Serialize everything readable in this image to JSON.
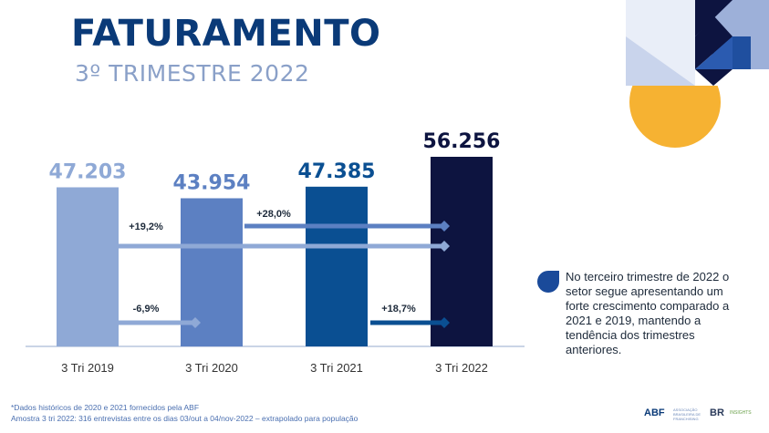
{
  "header": {
    "title": "FATURAMENTO",
    "subtitle": "3º TRIMESTRE 2022"
  },
  "chart_data": {
    "type": "bar",
    "categories": [
      "3 Tri 2019",
      "3 Tri 2020",
      "3 Tri 2021",
      "3 Tri 2022"
    ],
    "values": [
      47203,
      43954,
      47385,
      56256
    ],
    "value_labels": [
      "47.203",
      "43.954",
      "47.385",
      "56.256"
    ],
    "colors": [
      "#8fa9d6",
      "#5c80c2",
      "#0a4f92",
      "#0d1440"
    ],
    "label_colors": [
      "#8fa9d6",
      "#5c80c2",
      "#0a4f92",
      "#0d1440"
    ],
    "ylim": [
      0,
      60000
    ],
    "grid": false,
    "comparisons": [
      {
        "label": "+19,2%",
        "from": 0,
        "to": 3,
        "color": "#8fa9d6"
      },
      {
        "label": "+28,0%",
        "from": 1,
        "to": 3,
        "color": "#5c80c2"
      },
      {
        "label": "-6,9%",
        "from": 0,
        "to": 1,
        "color": "#8fa9d6"
      },
      {
        "label": "+18,7%",
        "from": 2,
        "to": 3,
        "color": "#0a4f92"
      }
    ]
  },
  "note": {
    "text": "No terceiro trimestre de 2022 o setor segue apresentando um forte crescimento comparado a 2021 e 2019, mantendo a tendência dos trimestres anteriores.",
    "bullet_color": "#1a4a9a"
  },
  "footer": {
    "line1": "*Dados históricos de 2020 e 2021 fornecidos pela ABF",
    "line2": "Amostra 3 tri 2022: 316 entrevistas entre os dias 03/out a 04/nov-2022 – extrapolado para população",
    "logo_abf": "ABF",
    "logo_abf_sub": "ASSOCIAÇÃO BRASILEIRA DE FRANCHISING",
    "logo_br": "BR",
    "logo_br_sub": "INSIGHTS"
  },
  "decor_colors": {
    "navy": "#0d1440",
    "blue": "#1f4f9f",
    "light_blue": "#9db0d9",
    "yellow": "#f6b232"
  }
}
